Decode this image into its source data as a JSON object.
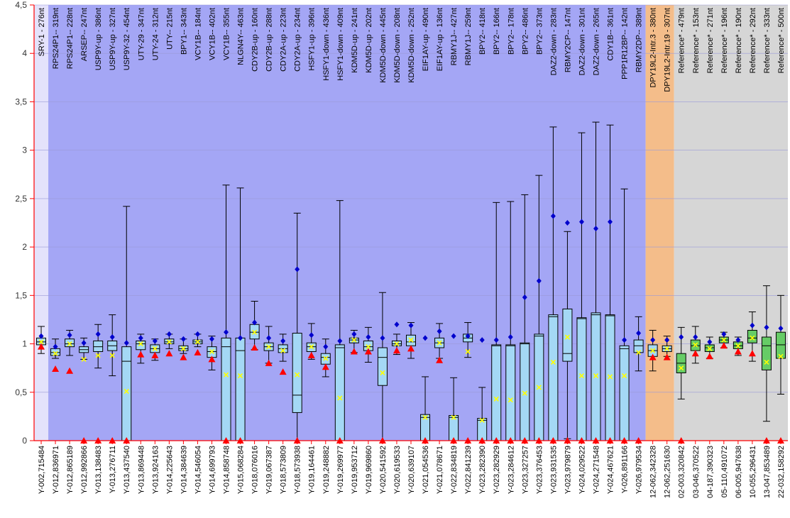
{
  "chart_data": {
    "type": "box",
    "ylim": [
      0,
      4.5
    ],
    "y_ticks": [
      "0",
      "0,5",
      "1",
      "1,5",
      "2",
      "2,5",
      "3",
      "3,5",
      "4",
      "4,5"
    ],
    "regions": [
      {
        "from": 0,
        "to": 0,
        "color": "#e4e2fb"
      },
      {
        "from": 1,
        "to": 42,
        "color": "#a4a6f5"
      },
      {
        "from": 43,
        "to": 44,
        "color": "#f4bd8a"
      },
      {
        "from": 45,
        "to": 52,
        "color": "#d6d6d6"
      }
    ],
    "colors": {
      "box_blue": "#a4d8f5",
      "box_green": "#66cc66",
      "mean": "#0000cc",
      "median_marker": "#ffff00",
      "triangle": "#ff0000",
      "axis": "#ff0000"
    },
    "samples": [
      {
        "probe": "SRY-1 - 276nt",
        "sample": "Y-002,715484",
        "box": "blue",
        "min": 0.9,
        "q1": 0.99,
        "median": 1.02,
        "q3": 1.06,
        "max": 1.18,
        "mean": 1.08,
        "marker": 1.02,
        "tri": 0.97
      },
      {
        "probe": "RPS24P1-- 319nt",
        "sample": "Y-012,836971",
        "box": "blue",
        "min": 0.85,
        "q1": 0.88,
        "median": 0.91,
        "q3": 0.95,
        "max": 1.05,
        "mean": 0.97,
        "marker": 0.9,
        "tri": 0.74
      },
      {
        "probe": "RPS24P1-- 228nt",
        "sample": "Y-012,865189",
        "box": "blue",
        "min": 0.88,
        "q1": 0.97,
        "median": 1.0,
        "q3": 1.05,
        "max": 1.14,
        "mean": 1.09,
        "marker": 1.0,
        "tri": 0.72
      },
      {
        "probe": "ARSEP-- 247nt",
        "sample": "Y-012,992866",
        "box": "blue",
        "min": 0.84,
        "q1": 0.91,
        "median": 0.94,
        "q3": 0.97,
        "max": 1.06,
        "mean": 1.01,
        "marker": 0.84,
        "tri": 0.0
      },
      {
        "probe": "USP9Y-up - 386nt",
        "sample": "Y-013,138483",
        "box": "blue",
        "min": 0.75,
        "q1": 0.92,
        "median": 0.97,
        "q3": 1.03,
        "max": 1.2,
        "mean": 1.1,
        "marker": 0.88,
        "tri": 0.0
      },
      {
        "probe": "USP9Y-up - 327nt",
        "sample": "Y-013,276711",
        "box": "blue",
        "min": 0.67,
        "q1": 0.93,
        "median": 0.98,
        "q3": 1.03,
        "max": 1.3,
        "mean": 1.07,
        "marker": 0.88,
        "tri": 0.0
      },
      {
        "probe": "USP9Y-32 - 454nt",
        "sample": "Y-013,437540",
        "box": "blue",
        "min": 0.0,
        "q1": 0.0,
        "median": 0.82,
        "q3": 0.97,
        "max": 2.42,
        "mean": 1.01,
        "marker": 0.51,
        "tri": 0.0
      },
      {
        "probe": "UTY-29 - 347nt",
        "sample": "Y-013,869448",
        "box": "blue",
        "min": 0.8,
        "q1": 0.94,
        "median": 1.0,
        "q3": 1.03,
        "max": 1.1,
        "mean": 1.06,
        "marker": 1.0,
        "tri": 0.89
      },
      {
        "probe": "UTY-24 - 312nt",
        "sample": "Y-013,924163",
        "box": "blue",
        "min": 0.83,
        "q1": 0.91,
        "median": 0.95,
        "q3": 0.99,
        "max": 1.05,
        "mean": 1.03,
        "marker": 0.95,
        "tri": 0.88
      },
      {
        "probe": "UTY-- 215nt",
        "sample": "Y-014,225643",
        "box": "blue",
        "min": 0.95,
        "q1": 1.0,
        "median": 1.02,
        "q3": 1.05,
        "max": 1.1,
        "mean": 1.1,
        "marker": 1.02,
        "tri": 0.9
      },
      {
        "probe": "BPY1-- 343nt",
        "sample": "Y-014,384639",
        "box": "blue",
        "min": 0.9,
        "q1": 0.93,
        "median": 0.95,
        "q3": 0.98,
        "max": 1.05,
        "mean": 1.05,
        "marker": 0.95,
        "tri": 0.86
      },
      {
        "probe": "VCY1B-- 184nt",
        "sample": "Y-014,546054",
        "box": "blue",
        "min": 0.97,
        "q1": 1.0,
        "median": 1.02,
        "q3": 1.04,
        "max": 1.1,
        "mean": 1.1,
        "marker": 1.02,
        "tri": 0.91
      },
      {
        "probe": "VCY1B-- 402nt",
        "sample": "Y-014,699793",
        "box": "blue",
        "min": 0.73,
        "q1": 0.86,
        "median": 0.92,
        "q3": 0.97,
        "max": 1.08,
        "mean": 1.05,
        "marker": 0.92,
        "tri": 0.84
      },
      {
        "probe": "VCY1B-- 355nt",
        "sample": "Y-014,858748",
        "box": "blue",
        "min": 0.0,
        "q1": 0.0,
        "median": 0.97,
        "q3": 1.06,
        "max": 2.64,
        "mean": 1.12,
        "marker": 0.68,
        "tri": 0.0
      },
      {
        "probe": "NLGN4Y-- 463nt",
        "sample": "Y-015,068284",
        "box": "blue",
        "min": 0.0,
        "q1": 0.0,
        "median": 0.93,
        "q3": 1.06,
        "max": 2.61,
        "mean": 1.06,
        "marker": 0.67,
        "tri": 0.0
      },
      {
        "probe": "CDY2B-up - 160nt",
        "sample": "Y-018,076016",
        "box": "blue",
        "min": 0.94,
        "q1": 1.05,
        "median": 1.12,
        "q3": 1.2,
        "max": 1.44,
        "mean": 1.22,
        "marker": 1.12,
        "tri": 0.96
      },
      {
        "probe": "CDY2B-up - 288nt",
        "sample": "Y-019,067387",
        "box": "blue",
        "min": 0.8,
        "q1": 0.93,
        "median": 0.97,
        "q3": 1.01,
        "max": 1.18,
        "mean": 1.06,
        "marker": 0.97,
        "tri": 0.8
      },
      {
        "probe": "CDY2A-up - 223nt",
        "sample": "Y-018,573809",
        "box": "blue",
        "min": 0.82,
        "q1": 0.91,
        "median": 0.95,
        "q3": 0.99,
        "max": 1.1,
        "mean": 1.03,
        "marker": 0.93,
        "tri": 0.71
      },
      {
        "probe": "CDY2A-up - 234nt",
        "sample": "Y-018,573938",
        "box": "blue",
        "min": 0.0,
        "q1": 0.29,
        "median": 0.47,
        "q3": 1.11,
        "max": 2.35,
        "mean": 1.77,
        "marker": 0.68,
        "tri": 0.0
      },
      {
        "probe": "HSFY1-up - 396nt",
        "sample": "Y-019,164461",
        "box": "blue",
        "min": 0.84,
        "q1": 0.92,
        "median": 0.97,
        "q3": 1.01,
        "max": 1.21,
        "mean": 1.09,
        "marker": 0.97,
        "tri": 0.88
      },
      {
        "probe": "HSFY1-down - 436nt",
        "sample": "Y-019,248882",
        "box": "blue",
        "min": 0.66,
        "q1": 0.79,
        "median": 0.86,
        "q3": 0.9,
        "max": 1.05,
        "mean": 0.97,
        "marker": 0.85,
        "tri": 0.76
      },
      {
        "probe": "HSFY1-down - 409nt",
        "sample": "Y-019,269977",
        "box": "blue",
        "min": 0.0,
        "q1": 0.0,
        "median": 0.96,
        "q3": 0.99,
        "max": 2.48,
        "mean": 1.03,
        "marker": 0.44,
        "tri": 0.0
      },
      {
        "probe": "KDM5D-up - 241nt",
        "sample": "Y-019,953712",
        "box": "blue",
        "min": 0.91,
        "q1": 1.01,
        "median": 1.04,
        "q3": 1.06,
        "max": 1.14,
        "mean": 1.1,
        "marker": 1.04,
        "tri": 0.92
      },
      {
        "probe": "KDM5D-up - 202nt",
        "sample": "Y-019,969860",
        "box": "blue",
        "min": 0.81,
        "q1": 0.93,
        "median": 0.97,
        "q3": 1.03,
        "max": 1.17,
        "mean": 1.07,
        "marker": 0.97,
        "tri": 0.92
      },
      {
        "probe": "KDM5D-down - 445nt",
        "sample": "Y-020,541592",
        "box": "blue",
        "min": 0.0,
        "q1": 0.57,
        "median": 0.86,
        "q3": 0.96,
        "max": 1.53,
        "mean": 1.06,
        "marker": 0.7,
        "tri": 0.0
      },
      {
        "probe": "KDM5D-down - 208nt",
        "sample": "Y-020,619533",
        "box": "blue",
        "min": 0.89,
        "q1": 0.98,
        "median": 1.0,
        "q3": 1.03,
        "max": 1.1,
        "mean": 1.2,
        "marker": 1.0,
        "tri": 0.93
      },
      {
        "probe": "KDM5D-down - 252nt",
        "sample": "Y-020,639107",
        "box": "blue",
        "min": 0.85,
        "q1": 0.98,
        "median": 1.02,
        "q3": 1.09,
        "max": 1.22,
        "mean": 1.19,
        "marker": 1.04,
        "tri": 0.95
      },
      {
        "probe": "EIF1AY-up - 490nt",
        "sample": "Y-021,054536",
        "box": "blue",
        "min": 0.0,
        "q1": 0.0,
        "median": 0.24,
        "q3": 0.27,
        "max": 0.66,
        "mean": 1.06,
        "marker": 0.24,
        "tri": 0.0
      },
      {
        "probe": "EIF1AY-up - 136nt",
        "sample": "Y-021,078671",
        "box": "blue",
        "min": 0.85,
        "q1": 0.96,
        "median": 1.01,
        "q3": 1.06,
        "max": 1.21,
        "mean": 1.13,
        "marker": 1.01,
        "tri": 0.83
      },
      {
        "probe": "RBMY1J-- 427nt",
        "sample": "Y-022,834819",
        "box": "blue",
        "min": 0.0,
        "q1": 0.0,
        "median": 0.24,
        "q3": 0.26,
        "max": 0.65,
        "mean": 1.08,
        "marker": 0.24,
        "tri": 0.0
      },
      {
        "probe": "RBMY1J-- 259nt",
        "sample": "Y-022,841239",
        "box": "blue",
        "min": 0.86,
        "q1": 1.02,
        "median": 1.06,
        "q3": 1.1,
        "max": 1.22,
        "mean": 1.08,
        "marker": 0.92,
        "tri": 0.0
      },
      {
        "probe": "BPY2-- 418nt",
        "sample": "Y-023,282390",
        "box": "blue",
        "min": 0.0,
        "q1": 0.0,
        "median": 0.21,
        "q3": 0.23,
        "max": 0.55,
        "mean": 1.04,
        "marker": 0.21,
        "tri": 0.0
      },
      {
        "probe": "BPY2-- 166nt",
        "sample": "Y-023,282929",
        "box": "blue",
        "min": 0.0,
        "q1": 0.0,
        "median": 0.98,
        "q3": 0.99,
        "max": 2.46,
        "mean": 1.04,
        "marker": 0.43,
        "tri": 0.0
      },
      {
        "probe": "BPY2-- 178nt",
        "sample": "Y-023,284612",
        "box": "blue",
        "min": 0.0,
        "q1": 0.0,
        "median": 0.98,
        "q3": 0.99,
        "max": 2.47,
        "mean": 1.07,
        "marker": 0.42,
        "tri": 0.0
      },
      {
        "probe": "BPY2-- 486nt",
        "sample": "Y-023,327257",
        "box": "blue",
        "min": 0.0,
        "q1": 0.0,
        "median": 1.0,
        "q3": 1.01,
        "max": 2.54,
        "mean": 1.48,
        "marker": 0.49,
        "tri": 0.0
      },
      {
        "probe": "BPY2-- 373nt",
        "sample": "Y-023,376453",
        "box": "blue",
        "min": 0.0,
        "q1": 0.0,
        "median": 1.08,
        "q3": 1.1,
        "max": 2.74,
        "mean": 1.65,
        "marker": 0.55,
        "tri": 0.0
      },
      {
        "probe": "DAZ2-down - 283nt",
        "sample": "Y-023,931535",
        "box": "blue",
        "min": 0.0,
        "q1": 0.0,
        "median": 1.28,
        "q3": 1.3,
        "max": 3.24,
        "mean": 2.32,
        "marker": 0.81,
        "tri": 0.0
      },
      {
        "probe": "RBMY2CP-- 147nt",
        "sample": "Y-023,979879",
        "box": "blue",
        "min": 0.02,
        "q1": 0.82,
        "median": 0.9,
        "q3": 1.36,
        "max": 2.16,
        "mean": 2.25,
        "marker": 1.07,
        "tri": 0.0
      },
      {
        "probe": "DAZ2-down - 301nt",
        "sample": "Y-024,029522",
        "box": "blue",
        "min": 0.0,
        "q1": 0.0,
        "median": 1.26,
        "q3": 1.27,
        "max": 3.18,
        "mean": 2.26,
        "marker": 0.67,
        "tri": 0.0
      },
      {
        "probe": "DAZ2-down - 265nt",
        "sample": "Y-024,271548",
        "box": "blue",
        "min": 0.0,
        "q1": 0.0,
        "median": 1.3,
        "q3": 1.32,
        "max": 3.29,
        "mean": 2.19,
        "marker": 0.67,
        "tri": 0.0
      },
      {
        "probe": "CDY1B-- 361nt",
        "sample": "Y-024,467621",
        "box": "blue",
        "min": 0.0,
        "q1": 0.0,
        "median": 1.29,
        "q3": 1.3,
        "max": 3.26,
        "mean": 2.26,
        "marker": 0.66,
        "tri": 0.0
      },
      {
        "probe": "PPP1R12BP-- 142nt",
        "sample": "Y-026,891166",
        "box": "blue",
        "min": 0.0,
        "q1": 0.0,
        "median": 0.95,
        "q3": 0.98,
        "max": 2.6,
        "mean": 1.04,
        "marker": 0.67,
        "tri": 0.0
      },
      {
        "probe": "RBMY2DP-- 389nt",
        "sample": "Y-026,979534",
        "box": "blue",
        "min": 0.72,
        "q1": 0.91,
        "median": 0.98,
        "q3": 1.04,
        "max": 1.28,
        "mean": 1.11,
        "marker": 0.91,
        "tri": 0.0
      },
      {
        "probe": "DPY19L2-Intr.3 - 380nt",
        "sample": "12-062,342328",
        "box": "blue",
        "min": 0.72,
        "q1": 0.87,
        "median": 0.93,
        "q3": 0.99,
        "max": 1.14,
        "mean": 1.04,
        "marker": 0.93,
        "tri": 0.86
      },
      {
        "probe": "DPY19L2-Intr.19 - 307nt",
        "sample": "12-062,251630",
        "box": "blue",
        "min": 0.87,
        "q1": 0.92,
        "median": 0.95,
        "q3": 0.98,
        "max": 1.08,
        "mean": 1.04,
        "marker": 0.95,
        "tri": 0.86
      },
      {
        "probe": "Reference* - 479nt",
        "sample": "02-003,320842",
        "box": "green",
        "min": 0.43,
        "q1": 0.7,
        "median": 0.8,
        "q3": 0.9,
        "max": 1.17,
        "mean": 1.07,
        "marker": 0.75,
        "tri": 0.0
      },
      {
        "probe": "Reference* - 153nt",
        "sample": "03-046,370522",
        "box": "green",
        "min": 0.8,
        "q1": 0.93,
        "median": 0.98,
        "q3": 1.04,
        "max": 1.18,
        "mean": 1.07,
        "marker": 0.99,
        "tri": 0.9
      },
      {
        "probe": "Reference* - 271nt",
        "sample": "04-187,390323",
        "box": "green",
        "min": 0.85,
        "q1": 0.92,
        "median": 0.96,
        "q3": 0.99,
        "max": 1.07,
        "mean": 1.02,
        "marker": 0.95,
        "tri": 0.87
      },
      {
        "probe": "Reference* - 196nt",
        "sample": "05-110,491072",
        "box": "green",
        "min": 0.96,
        "q1": 1.01,
        "median": 1.04,
        "q3": 1.07,
        "max": 1.12,
        "mean": 1.1,
        "marker": 1.04,
        "tri": 0.98
      },
      {
        "probe": "Reference* - 190nt",
        "sample": "06-005,947638",
        "box": "green",
        "min": 0.88,
        "q1": 0.95,
        "median": 0.98,
        "q3": 1.02,
        "max": 1.07,
        "mean": 1.04,
        "marker": 0.98,
        "tri": 0.92
      },
      {
        "probe": "Reference* - 292nt",
        "sample": "10-055,296431",
        "box": "green",
        "min": 0.82,
        "q1": 1.01,
        "median": 1.06,
        "q3": 1.14,
        "max": 1.33,
        "mean": 1.19,
        "marker": 1.06,
        "tri": 0.9
      },
      {
        "probe": "Reference* - 333nt",
        "sample": "13-047,853489",
        "box": "green",
        "min": 0.2,
        "q1": 0.73,
        "median": 0.98,
        "q3": 1.07,
        "max": 1.6,
        "mean": 1.17,
        "marker": 0.81,
        "tri": 0.0
      },
      {
        "probe": "Reference* - 500nt",
        "sample": "22-032,158292",
        "box": "green",
        "min": 0.48,
        "q1": 0.85,
        "median": 0.99,
        "q3": 1.12,
        "max": 1.5,
        "mean": 1.16,
        "marker": 0.87,
        "tri": 0.0
      }
    ]
  }
}
